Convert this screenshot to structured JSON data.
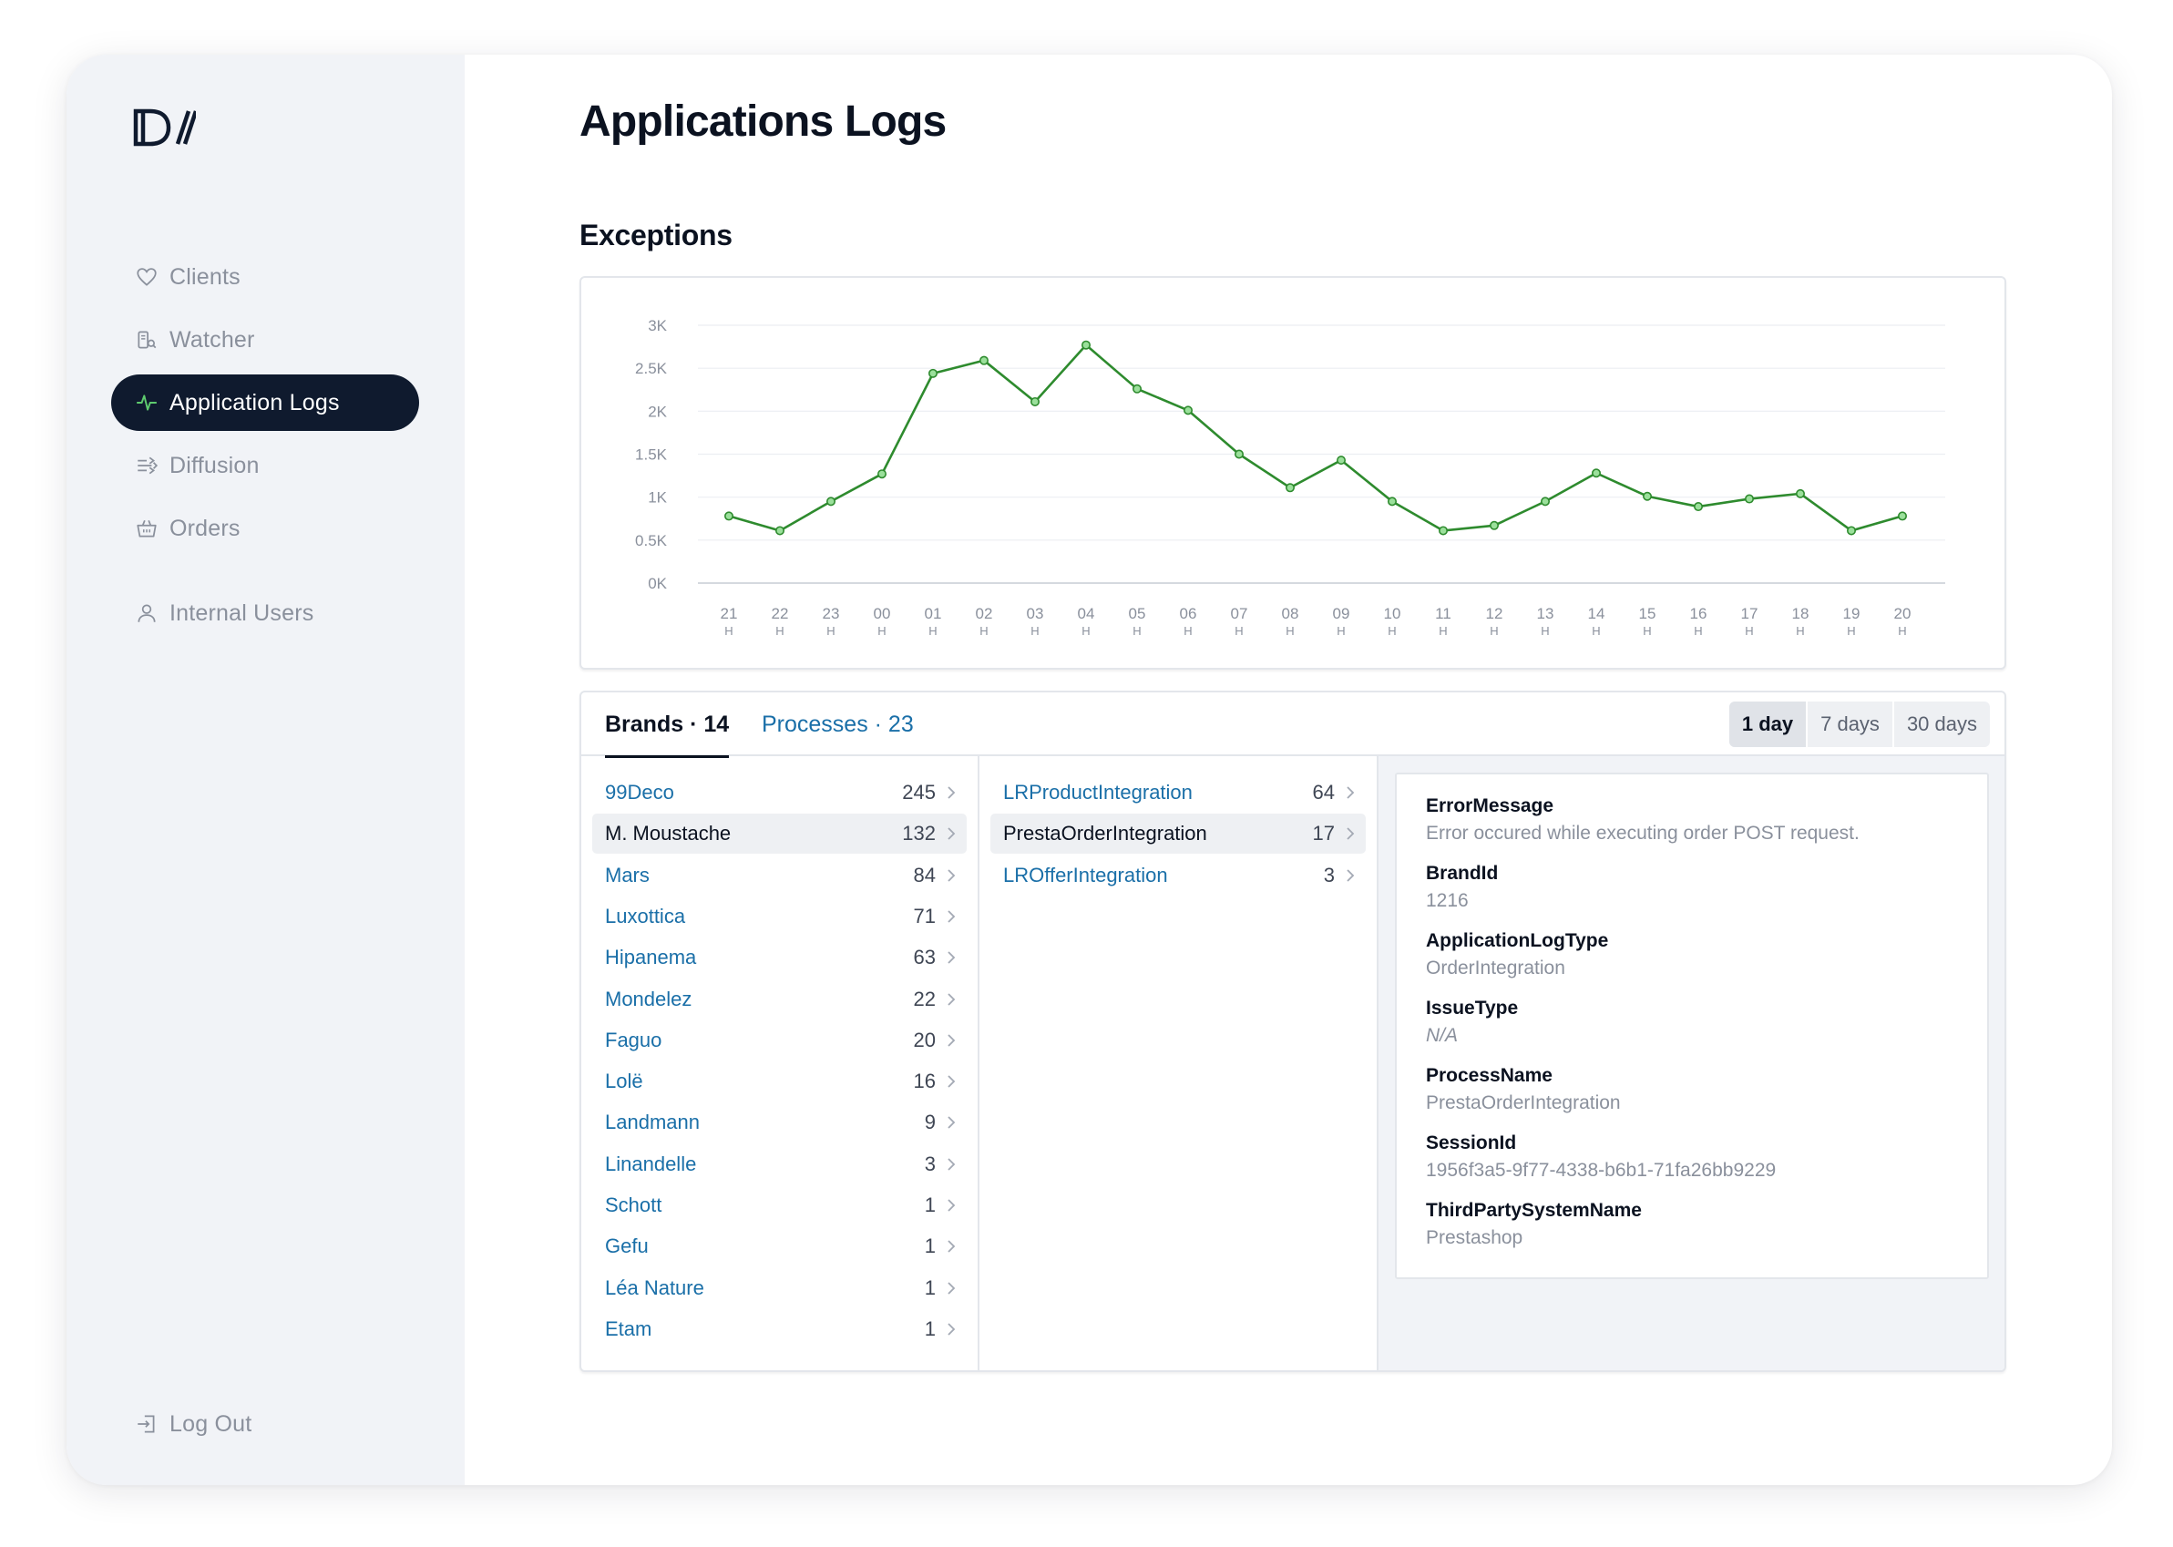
{
  "sidebar": {
    "items": [
      {
        "label": "Clients",
        "icon": "heart-icon"
      },
      {
        "label": "Watcher",
        "icon": "watcher-icon"
      },
      {
        "label": "Application Logs",
        "icon": "pulse-icon"
      },
      {
        "label": "Diffusion",
        "icon": "diffusion-icon"
      },
      {
        "label": "Orders",
        "icon": "basket-icon"
      },
      {
        "label": "Internal Users",
        "icon": "user-icon"
      }
    ],
    "active_index": 2,
    "logout_label": "Log Out",
    "logout_icon": "logout-icon"
  },
  "page": {
    "title": "Applications Logs",
    "exceptions_title": "Exceptions"
  },
  "chart_data": {
    "type": "line",
    "title": "",
    "xlabel": "",
    "ylabel": "",
    "categories": [
      "21",
      "22",
      "23",
      "00",
      "01",
      "02",
      "03",
      "04",
      "05",
      "06",
      "07",
      "08",
      "09",
      "10",
      "11",
      "12",
      "13",
      "14",
      "15",
      "16",
      "17",
      "18",
      "19",
      "20"
    ],
    "category_unit": "H",
    "y_ticks": [
      0,
      500,
      1000,
      1500,
      2000,
      2500,
      3000
    ],
    "y_tick_labels": [
      "0K",
      "0.5K",
      "1K",
      "1.5K",
      "2K",
      "2.5K",
      "3K"
    ],
    "ylim": [
      0,
      3000
    ],
    "grid": true,
    "series": [
      {
        "color": "#2e8b2e",
        "values": [
          780,
          610,
          950,
          1270,
          2440,
          2590,
          2110,
          2770,
          2260,
          2010,
          1500,
          1110,
          1430,
          950,
          610,
          670,
          950,
          1280,
          1010,
          890,
          980,
          1040,
          610,
          780
        ]
      }
    ]
  },
  "tabs": {
    "brands": "Brands · 14",
    "processes": "Processes · 23"
  },
  "periods": [
    "1 day",
    "7 days",
    "30 days"
  ],
  "selected_period": 0,
  "brands": [
    {
      "name": "99Deco",
      "count": "245"
    },
    {
      "name": "M. Moustache",
      "count": "132"
    },
    {
      "name": "Mars",
      "count": "84"
    },
    {
      "name": "Luxottica",
      "count": "71"
    },
    {
      "name": "Hipanema",
      "count": "63"
    },
    {
      "name": "Mondelez",
      "count": "22"
    },
    {
      "name": "Faguo",
      "count": "20"
    },
    {
      "name": "Lolë",
      "count": "16"
    },
    {
      "name": "Landmann",
      "count": "9"
    },
    {
      "name": "Linandelle",
      "count": "3"
    },
    {
      "name": "Schott",
      "count": "1"
    },
    {
      "name": "Gefu",
      "count": "1"
    },
    {
      "name": "Léa Nature",
      "count": "1"
    },
    {
      "name": "Etam",
      "count": "1"
    }
  ],
  "selected_brand": 1,
  "processes": [
    {
      "name": "LRProductIntegration",
      "count": "64"
    },
    {
      "name": "PrestaOrderIntegration",
      "count": "17"
    },
    {
      "name": "LROfferIntegration",
      "count": "3"
    }
  ],
  "selected_process": 1,
  "detail": [
    {
      "label": "ErrorMessage",
      "value": "Error occured while executing order POST request."
    },
    {
      "label": "BrandId",
      "value": "1216"
    },
    {
      "label": "ApplicationLogType",
      "value": "OrderIntegration"
    },
    {
      "label": "IssueType",
      "value": "N/A",
      "italic": true
    },
    {
      "label": "ProcessName",
      "value": "PrestaOrderIntegration"
    },
    {
      "label": "SessionId",
      "value": "1956f3a5-9f77-4338-b6b1-71fa26bb9229"
    },
    {
      "label": "ThirdPartySystemName",
      "value": "Prestashop"
    }
  ]
}
